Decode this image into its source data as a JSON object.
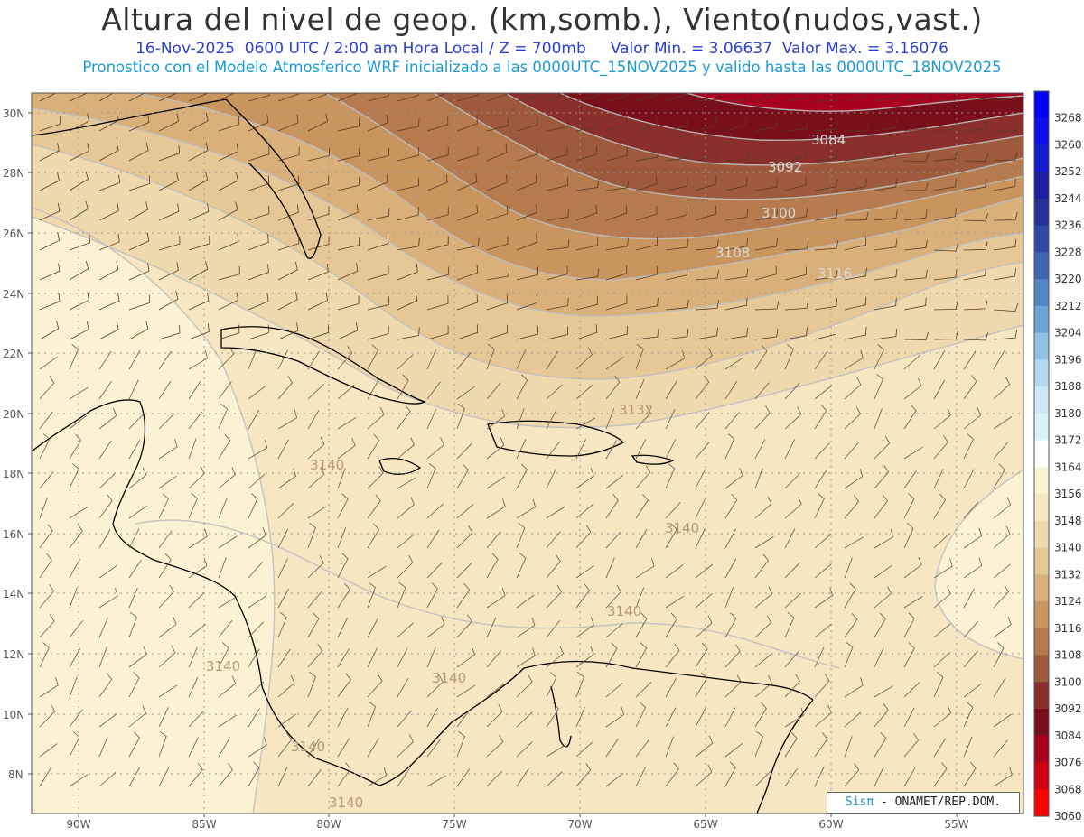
{
  "header": {
    "title": "Altura del nivel de geop. (km,somb.), Viento(nudos,vast.)",
    "date": "16-Nov-2025",
    "time": "0600 UTC / 2:00 am Hora Local / Z = 700mb",
    "min_label": "Valor Min. = 3.06637",
    "max_label": "Valor Max. = 3.16076",
    "model_info": "Pronostico con el Modelo Atmosferico WRF inicializado a las 0000UTC_15NOV2025 y valido hasta las  0000UTC_18NOV2025"
  },
  "axes": {
    "lon_labels": [
      "90W",
      "85W",
      "80W",
      "75W",
      "70W",
      "65W",
      "60W",
      "55W"
    ],
    "lat_labels": [
      "30N",
      "28N",
      "26N",
      "24N",
      "22N",
      "20N",
      "18N",
      "16N",
      "14N",
      "12N",
      "10N",
      "8N"
    ]
  },
  "contour_labels": [
    "3084",
    "3092",
    "3100",
    "3108",
    "3116",
    "3132",
    "3140",
    "3140",
    "3140",
    "3140",
    "3140",
    "3140",
    "3140"
  ],
  "colorbar": {
    "values": [
      "3268",
      "3260",
      "3252",
      "3244",
      "3236",
      "3228",
      "3220",
      "3212",
      "3204",
      "3196",
      "3188",
      "3180",
      "3172",
      "3164",
      "3156",
      "3148",
      "3140",
      "3132",
      "3124",
      "3116",
      "3108",
      "3100",
      "3092",
      "3084",
      "3076",
      "3068",
      "3060"
    ],
    "colors": [
      "#0000ff",
      "#0a10e8",
      "#141ccc",
      "#1c1f9e",
      "#23329b",
      "#2f4aa4",
      "#3f66b2",
      "#5386c6",
      "#6ea3d6",
      "#8fc0e6",
      "#b3d9f0",
      "#cde9f6",
      "#d9f3f9",
      "#ffffff",
      "#fbf2d3",
      "#f6e6c1",
      "#efd9ae",
      "#e5c896",
      "#d9b07a",
      "#c9955f",
      "#b57a4d",
      "#9e5a3d",
      "#8a2f2c",
      "#7a0f1c",
      "#a8001f",
      "#cf0016",
      "#ff0000"
    ]
  },
  "credit": {
    "logo": "Sisπ",
    "text": " - ONAMET/REP.DOM."
  }
}
